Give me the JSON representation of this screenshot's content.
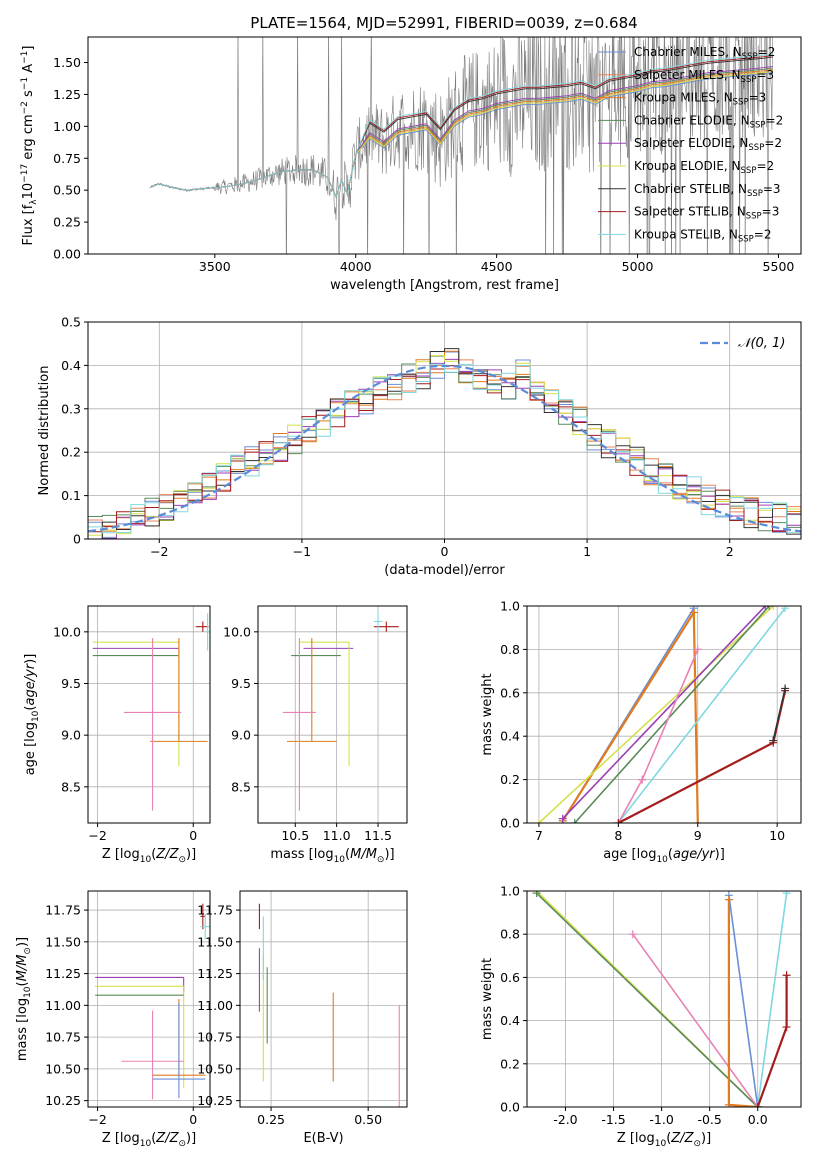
{
  "figure": {
    "title": "PLATE=1564, MJD=52991, FIBERID=0039, z=0.684"
  },
  "colors": {
    "Chabrier MILES": "#6b8fd6",
    "Salpeter MILES": "#e8835a",
    "Kroupa MILES": "#e07b20",
    "Chabrier ELODIE": "#5a8a5a",
    "Salpeter ELODIE": "#9b3fb5",
    "Kroupa ELODIE": "#d6e04a",
    "Chabrier STELIB": "#333333",
    "Salpeter STELIB": "#a51c1c",
    "Kroupa STELIB": "#7fd8e0",
    "data": "#7a7a7a",
    "normal": "#5b8bd6",
    "pink": "#e882b4"
  },
  "chart_data": [
    {
      "id": "spectrum",
      "type": "line",
      "title": "PLATE=1564, MJD=52991, FIBERID=0039, z=0.684",
      "xlabel": "wavelength [Angstrom, rest frame]",
      "ylabel": "Flux [f",
      "ylabel_full": "Flux [f_λ 10^-17 erg cm^-2 s^-1 A^-1]",
      "xlim": [
        3050,
        5580
      ],
      "ylim": [
        0.0,
        1.7
      ],
      "xticks": [
        3500,
        4000,
        4500,
        5000,
        5500
      ],
      "yticks": [
        0.0,
        0.25,
        0.5,
        0.75,
        1.0,
        1.25,
        1.5
      ],
      "legend_position": "top-right",
      "legend": [
        {
          "name": "Chabrier MILES",
          "nssp": "2"
        },
        {
          "name": "Salpeter MILES",
          "nssp": "3"
        },
        {
          "name": "Kroupa MILES",
          "nssp": "3"
        },
        {
          "name": "Chabrier ELODIE",
          "nssp": "2"
        },
        {
          "name": "Salpeter ELODIE",
          "nssp": "2"
        },
        {
          "name": "Kroupa ELODIE",
          "nssp": "2"
        },
        {
          "name": "Chabrier STELIB",
          "nssp": "3"
        },
        {
          "name": "Salpeter STELIB",
          "nssp": "3"
        },
        {
          "name": "Kroupa STELIB",
          "nssp": "2"
        }
      ],
      "model_continuum": {
        "x": [
          3270,
          3300,
          3350,
          3400,
          3450,
          3500,
          3550,
          3600,
          3650,
          3700,
          3750,
          3800,
          3850,
          3900,
          3930,
          3950,
          3970,
          4000,
          4050,
          4100,
          4150,
          4200,
          4250,
          4300,
          4350,
          4400,
          4450,
          4500,
          4550,
          4600,
          4650,
          4700,
          4750,
          4800,
          4850,
          4900,
          4950,
          5000,
          5050,
          5100,
          5150,
          5200,
          5250,
          5300,
          5350,
          5400,
          5450,
          5480
        ],
        "y": [
          0.52,
          0.55,
          0.52,
          0.5,
          0.51,
          0.52,
          0.53,
          0.55,
          0.58,
          0.62,
          0.65,
          0.66,
          0.66,
          0.6,
          0.45,
          0.58,
          0.47,
          0.78,
          0.95,
          0.88,
          0.98,
          1.0,
          1.02,
          0.9,
          1.05,
          1.12,
          1.14,
          1.18,
          1.2,
          1.22,
          1.22,
          1.23,
          1.24,
          1.26,
          1.22,
          1.28,
          1.3,
          1.32,
          1.35,
          1.36,
          1.38,
          1.4,
          1.42,
          1.43,
          1.44,
          1.45,
          1.46,
          1.47
        ]
      }
    },
    {
      "id": "residuals",
      "type": "area",
      "xlabel": "(data-model)/error",
      "ylabel": "Normed distribution",
      "xlim": [
        -2.5,
        2.5
      ],
      "ylim": [
        0.0,
        0.5
      ],
      "xticks": [
        -2,
        -1,
        0,
        1,
        2
      ],
      "yticks": [
        0.0,
        0.1,
        0.2,
        0.3,
        0.4,
        0.5
      ],
      "grid": true,
      "legend_position": "top-right",
      "normal_label": "𝒩(0, 1)",
      "histogram": {
        "bin_width": 0.1,
        "centers": [
          -2.45,
          -2.35,
          -2.25,
          -2.15,
          -2.05,
          -1.95,
          -1.85,
          -1.75,
          -1.65,
          -1.55,
          -1.45,
          -1.35,
          -1.25,
          -1.15,
          -1.05,
          -0.95,
          -0.85,
          -0.75,
          -0.65,
          -0.55,
          -0.45,
          -0.35,
          -0.25,
          -0.15,
          -0.05,
          0.05,
          0.15,
          0.25,
          0.35,
          0.45,
          0.55,
          0.65,
          0.75,
          0.85,
          0.95,
          1.05,
          1.15,
          1.25,
          1.35,
          1.45,
          1.55,
          1.65,
          1.75,
          1.85,
          1.95,
          2.05,
          2.15,
          2.25,
          2.35,
          2.45
        ],
        "values": [
          0.02,
          0.03,
          0.04,
          0.05,
          0.06,
          0.07,
          0.09,
          0.1,
          0.12,
          0.14,
          0.16,
          0.18,
          0.19,
          0.21,
          0.23,
          0.25,
          0.27,
          0.29,
          0.31,
          0.32,
          0.34,
          0.35,
          0.37,
          0.38,
          0.4,
          0.41,
          0.39,
          0.37,
          0.36,
          0.35,
          0.38,
          0.33,
          0.31,
          0.29,
          0.27,
          0.24,
          0.22,
          0.2,
          0.18,
          0.16,
          0.14,
          0.12,
          0.11,
          0.09,
          0.08,
          0.07,
          0.06,
          0.05,
          0.05,
          0.04
        ]
      }
    },
    {
      "id": "age-vs-Z",
      "type": "scatter",
      "xlabel": "Z [log",
      "ylabel": "age  [log",
      "xlim": [
        -2.2,
        0.35
      ],
      "ylim": [
        8.15,
        10.25
      ],
      "xticks": [
        -2,
        0
      ],
      "yticks": [
        8.5,
        9.0,
        9.5,
        10.0
      ],
      "grid": true,
      "points": [
        {
          "x": 0.2,
          "y": 10.05,
          "dx": [
            0.15,
            0.12
          ],
          "dy": [
            0.05,
            0.05
          ],
          "c": "Salpeter STELIB"
        },
        {
          "x": -0.3,
          "y": 9.77,
          "dx": [
            1.8,
            0.0
          ],
          "dy": [
            0.0,
            0.0
          ],
          "c": "Chabrier ELODIE"
        },
        {
          "x": -0.3,
          "y": 9.84,
          "dx": [
            1.8,
            0.0
          ],
          "dy": [
            0.0,
            0.0
          ],
          "c": "Salpeter ELODIE"
        },
        {
          "x": -0.3,
          "y": 9.9,
          "dx": [
            1.8,
            0.0
          ],
          "dy": [
            1.2,
            0.0
          ],
          "c": "Kroupa ELODIE"
        },
        {
          "x": -0.3,
          "y": 8.94,
          "dx": [
            0.6,
            0.6
          ],
          "dy": [
            0.0,
            1.0
          ],
          "c": "Kroupa MILES"
        },
        {
          "x": -0.85,
          "y": 9.22,
          "dx": [
            0.6,
            0.6
          ],
          "dy": [
            0.95,
            0.72
          ],
          "c": "pink"
        },
        {
          "x": 0.3,
          "y": 10.0,
          "dx": [
            0.05,
            0.05
          ],
          "dy": [
            0.18,
            0.18
          ],
          "c": "Kroupa STELIB"
        }
      ]
    },
    {
      "id": "age-vs-mass",
      "type": "scatter",
      "xlabel": "mass [log",
      "xlim": [
        10.05,
        11.85
      ],
      "ylim": [
        8.15,
        10.25
      ],
      "xticks": [
        10.5,
        11.0,
        11.5
      ],
      "yticks": [
        8.5,
        9.0,
        9.5,
        10.0
      ],
      "grid": true,
      "points": [
        {
          "x": 11.6,
          "y": 10.05,
          "dx": [
            0.15,
            0.15
          ],
          "dy": [
            0.05,
            0.05
          ],
          "c": "Salpeter STELIB"
        },
        {
          "x": 10.45,
          "y": 9.77,
          "dx": [
            0.0,
            0.6
          ],
          "dy": [
            0.0,
            0.0
          ],
          "c": "Chabrier ELODIE"
        },
        {
          "x": 10.6,
          "y": 9.84,
          "dx": [
            0.0,
            0.6
          ],
          "dy": [
            0.0,
            0.0
          ],
          "c": "Salpeter ELODIE"
        },
        {
          "x": 11.15,
          "y": 9.9,
          "dx": [
            0.6,
            0.0
          ],
          "dy": [
            1.2,
            0.0
          ],
          "c": "Kroupa ELODIE"
        },
        {
          "x": 10.7,
          "y": 8.94,
          "dx": [
            0.3,
            0.3
          ],
          "dy": [
            0.0,
            1.0
          ],
          "c": "Kroupa MILES"
        },
        {
          "x": 10.55,
          "y": 9.22,
          "dx": [
            0.2,
            0.2
          ],
          "dy": [
            0.95,
            0.72
          ],
          "c": "pink"
        },
        {
          "x": 11.5,
          "y": 10.1,
          "dx": [
            0.05,
            0.05
          ],
          "dy": [
            0.1,
            0.1
          ],
          "c": "Kroupa STELIB"
        }
      ]
    },
    {
      "id": "weight-vs-age",
      "type": "line",
      "xlabel": "age  [log",
      "ylabel": "mass weight",
      "xlim": [
        6.85,
        10.3
      ],
      "ylim": [
        0.0,
        1.0
      ],
      "xticks": [
        7,
        8,
        9,
        10
      ],
      "yticks": [
        0.0,
        0.2,
        0.4,
        0.6,
        0.8,
        1.0
      ],
      "grid": true,
      "series": [
        {
          "c": "Chabrier MILES",
          "x": [
            7.3,
            8.95
          ],
          "y": [
            0.01,
            0.99
          ]
        },
        {
          "c": "Kroupa MILES",
          "x": [
            7.3,
            8.95,
            9.0
          ],
          "y": [
            0.01,
            0.97,
            0.0
          ]
        },
        {
          "c": "Kroupa ELODIE",
          "x": [
            7.0,
            9.95
          ],
          "y": [
            0.0,
            1.0
          ]
        },
        {
          "c": "Chabrier ELODIE",
          "x": [
            7.45,
            9.9
          ],
          "y": [
            0.0,
            1.0
          ]
        },
        {
          "c": "Salpeter ELODIE",
          "x": [
            7.3,
            9.85
          ],
          "y": [
            0.02,
            1.0
          ]
        },
        {
          "c": "Kroupa STELIB",
          "x": [
            8.0,
            10.1
          ],
          "y": [
            0.0,
            0.99
          ]
        },
        {
          "c": "pink",
          "x": [
            8.0,
            8.3
          ],
          "y": [
            0.0,
            0.2
          ]
        },
        {
          "c": "Salpeter STELIB",
          "x": [
            8.0,
            9.95,
            10.1
          ],
          "y": [
            0.0,
            0.37,
            0.61
          ]
        },
        {
          "c": "Chabrier STELIB",
          "x": [
            9.95,
            10.1
          ],
          "y": [
            0.38,
            0.62
          ]
        },
        {
          "c": "pink",
          "x": [
            8.3,
            9.0
          ],
          "y": [
            0.2,
            0.8
          ]
        }
      ]
    },
    {
      "id": "mass-vs-Z",
      "type": "scatter",
      "xlabel": "Z [log",
      "ylabel": "mass [log",
      "xlim": [
        -2.2,
        0.35
      ],
      "ylim": [
        10.2,
        11.9
      ],
      "xticks": [
        -2,
        0
      ],
      "yticks": [
        10.25,
        10.5,
        10.75,
        11.0,
        11.25,
        11.5,
        11.75
      ],
      "grid": true,
      "points": [
        {
          "x": 0.2,
          "y": 11.7,
          "dx": [
            0.05,
            0.05
          ],
          "dy": [
            0.1,
            0.1
          ],
          "c": "Salpeter STELIB"
        },
        {
          "x": 0.25,
          "y": 11.62,
          "dx": [
            0.1,
            0.1
          ],
          "dy": [
            0.1,
            0.1
          ],
          "c": "Kroupa STELIB"
        },
        {
          "x": -0.2,
          "y": 11.22,
          "dx": [
            1.85,
            0.0
          ],
          "dy": [
            0.12,
            0.0
          ],
          "c": "Salpeter ELODIE"
        },
        {
          "x": -0.2,
          "y": 11.15,
          "dx": [
            1.85,
            0.0
          ],
          "dy": [
            0.8,
            0.0
          ],
          "c": "Kroupa ELODIE"
        },
        {
          "x": -0.2,
          "y": 11.08,
          "dx": [
            1.85,
            0.0
          ],
          "dy": [
            0.0,
            0.0
          ],
          "c": "Chabrier ELODIE"
        },
        {
          "x": -0.3,
          "y": 10.45,
          "dx": [
            0.55,
            0.55
          ],
          "dy": [
            0.0,
            0.6
          ],
          "c": "Kroupa MILES"
        },
        {
          "x": -0.85,
          "y": 10.56,
          "dx": [
            0.65,
            0.65
          ],
          "dy": [
            0.3,
            0.4
          ],
          "c": "pink"
        },
        {
          "x": -0.3,
          "y": 10.42,
          "dx": [
            0.55,
            0.55
          ],
          "dy": [
            0.15,
            0.6
          ],
          "c": "Chabrier MILES"
        }
      ]
    },
    {
      "id": "mass-vs-EBV",
      "type": "scatter",
      "xlabel": "E(B-V)",
      "xlim": [
        0.17,
        0.6
      ],
      "ylim": [
        10.2,
        11.9
      ],
      "xticks": [
        0.25,
        0.5
      ],
      "yticks": [
        10.25,
        10.5,
        10.75,
        11.0,
        11.25,
        11.5,
        11.75
      ],
      "grid": true,
      "points": [
        {
          "x": 0.22,
          "y": 11.7,
          "dx": [
            0.0,
            0.0
          ],
          "dy": [
            0.1,
            0.1
          ],
          "c": "Salpeter STELIB"
        },
        {
          "x": 0.22,
          "y": 11.2,
          "dx": [
            0.0,
            0.0
          ],
          "dy": [
            0.25,
            0.25
          ],
          "c": "Salpeter ELODIE"
        },
        {
          "x": 0.23,
          "y": 10.9,
          "dx": [
            0.0,
            0.0
          ],
          "dy": [
            0.5,
            0.5
          ],
          "c": "Kroupa ELODIE"
        },
        {
          "x": 0.24,
          "y": 11.0,
          "dx": [
            0.0,
            0.0
          ],
          "dy": [
            0.3,
            0.3
          ],
          "c": "Chabrier ELODIE"
        },
        {
          "x": 0.41,
          "y": 10.7,
          "dx": [
            0.0,
            0.0
          ],
          "dy": [
            0.3,
            0.4
          ],
          "c": "Kroupa MILES"
        },
        {
          "x": 0.58,
          "y": 10.6,
          "dx": [
            0.0,
            0.0
          ],
          "dy": [
            0.4,
            0.4
          ],
          "c": "pink"
        },
        {
          "x": 0.23,
          "y": 11.4,
          "dx": [
            0.0,
            0.0
          ],
          "dy": [
            0.2,
            0.3
          ],
          "c": "Kroupa STELIB"
        }
      ]
    },
    {
      "id": "weight-vs-Z",
      "type": "line",
      "xlabel": "Z [log",
      "ylabel": "mass weight",
      "xlim": [
        -2.4,
        0.45
      ],
      "ylim": [
        0.0,
        1.0
      ],
      "xticks": [
        -2.0,
        -1.5,
        -1.0,
        -0.5,
        0.0
      ],
      "yticks": [
        0.0,
        0.2,
        0.4,
        0.6,
        0.8,
        1.0
      ],
      "grid": true,
      "series": [
        {
          "c": "Kroupa ELODIE",
          "x": [
            -2.3,
            0.0
          ],
          "y": [
            1.0,
            0.0
          ]
        },
        {
          "c": "Chabrier ELODIE",
          "x": [
            -2.3,
            0.0
          ],
          "y": [
            0.99,
            0.0
          ]
        },
        {
          "c": "pink",
          "x": [
            -1.3,
            0.0
          ],
          "y": [
            0.8,
            0.0
          ]
        },
        {
          "c": "Chabrier MILES",
          "x": [
            -0.3,
            0.0
          ],
          "y": [
            0.98,
            0.0
          ]
        },
        {
          "c": "Kroupa MILES",
          "x": [
            -0.3,
            -0.3,
            0.0
          ],
          "y": [
            0.96,
            0.01,
            0.0
          ]
        },
        {
          "c": "Kroupa STELIB",
          "x": [
            0.0,
            0.3
          ],
          "y": [
            0.0,
            0.99
          ]
        },
        {
          "c": "Salpeter STELIB",
          "x": [
            0.0,
            0.3,
            0.3
          ],
          "y": [
            0.0,
            0.37,
            0.61
          ]
        }
      ]
    }
  ]
}
